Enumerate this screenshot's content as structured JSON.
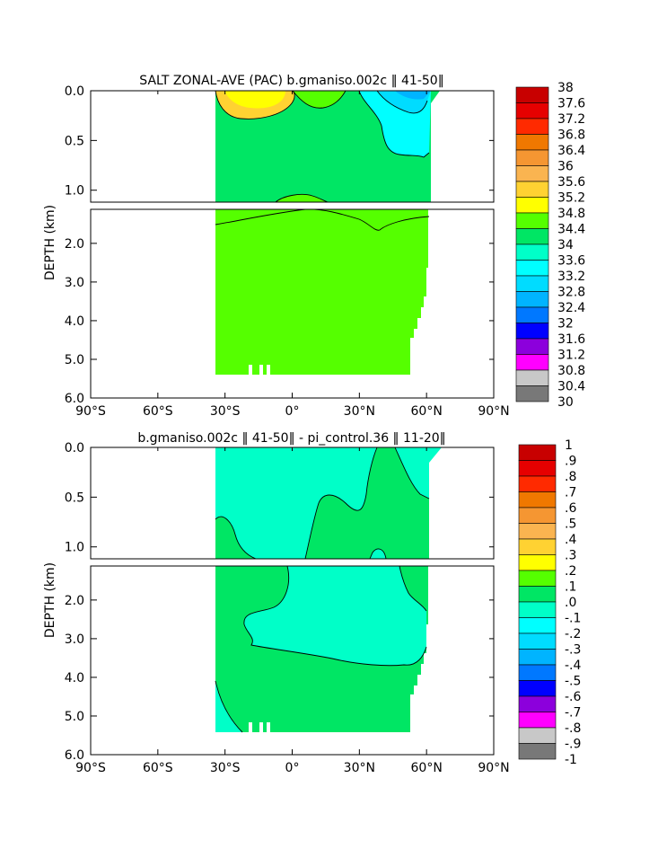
{
  "chart_data": [
    {
      "type": "heatmap",
      "title": "SALT ZONAL-AVE (PAC) b.gmaniso.002c ‖ 41-50‖",
      "xlabel": "",
      "ylabel": "DEPTH (km)",
      "x_ticks": [
        "90°S",
        "60°S",
        "30°S",
        "0°",
        "30°N",
        "60°N",
        "90°N"
      ],
      "y_ticks": [
        "0.0",
        "0.5",
        "1.0",
        "2.0",
        "3.0",
        "4.0",
        "5.0",
        "6.0"
      ],
      "xlim": [
        -90,
        90
      ],
      "ylim": [
        6.0,
        0.0
      ],
      "colorbar": {
        "labels": [
          "38",
          "37.6",
          "37.2",
          "36.8",
          "36.4",
          "36",
          "35.6",
          "35.2",
          "34.8",
          "34.4",
          "34",
          "33.6",
          "33.2",
          "32.8",
          "32.4",
          "32",
          "31.6",
          "31.2",
          "30.8",
          "30.4",
          "30"
        ],
        "colors": [
          "#c80000",
          "#e60000",
          "#ff2a00",
          "#f07800",
          "#f59632",
          "#fab450",
          "#ffd232",
          "#ffff00",
          "#55ff00",
          "#00e664",
          "#00ffc8",
          "#00ffff",
          "#00dcff",
          "#00b4ff",
          "#0078ff",
          "#0000ff",
          "#8c00dc",
          "#ff00ff",
          "#c8c8c8",
          "#787878"
        ]
      }
    },
    {
      "type": "heatmap",
      "title": "b.gmaniso.002c ‖ 41-50‖ - pi_control.36 ‖ 11-20‖",
      "xlabel": "",
      "ylabel": "DEPTH (km)",
      "x_ticks": [
        "90°S",
        "60°S",
        "30°S",
        "0°",
        "30°N",
        "60°N",
        "90°N"
      ],
      "y_ticks": [
        "0.0",
        "0.5",
        "1.0",
        "2.0",
        "3.0",
        "4.0",
        "5.0",
        "6.0"
      ],
      "xlim": [
        -90,
        90
      ],
      "ylim": [
        6.0,
        0.0
      ],
      "colorbar": {
        "labels": [
          "1",
          ".9",
          ".8",
          ".7",
          ".6",
          ".5",
          ".4",
          ".3",
          ".2",
          ".1",
          ".0",
          "-.1",
          "-.2",
          "-.3",
          "-.4",
          "-.5",
          "-.6",
          "-.7",
          "-.8",
          "-.9",
          "-1"
        ],
        "colors": [
          "#c80000",
          "#e60000",
          "#ff2a00",
          "#f07800",
          "#f59632",
          "#fab450",
          "#ffd232",
          "#ffff00",
          "#55ff00",
          "#00e664",
          "#00ffc8",
          "#00ffff",
          "#00dcff",
          "#00b4ff",
          "#0078ff",
          "#0000ff",
          "#8c00dc",
          "#ff00ff",
          "#c8c8c8",
          "#787878"
        ]
      }
    }
  ]
}
